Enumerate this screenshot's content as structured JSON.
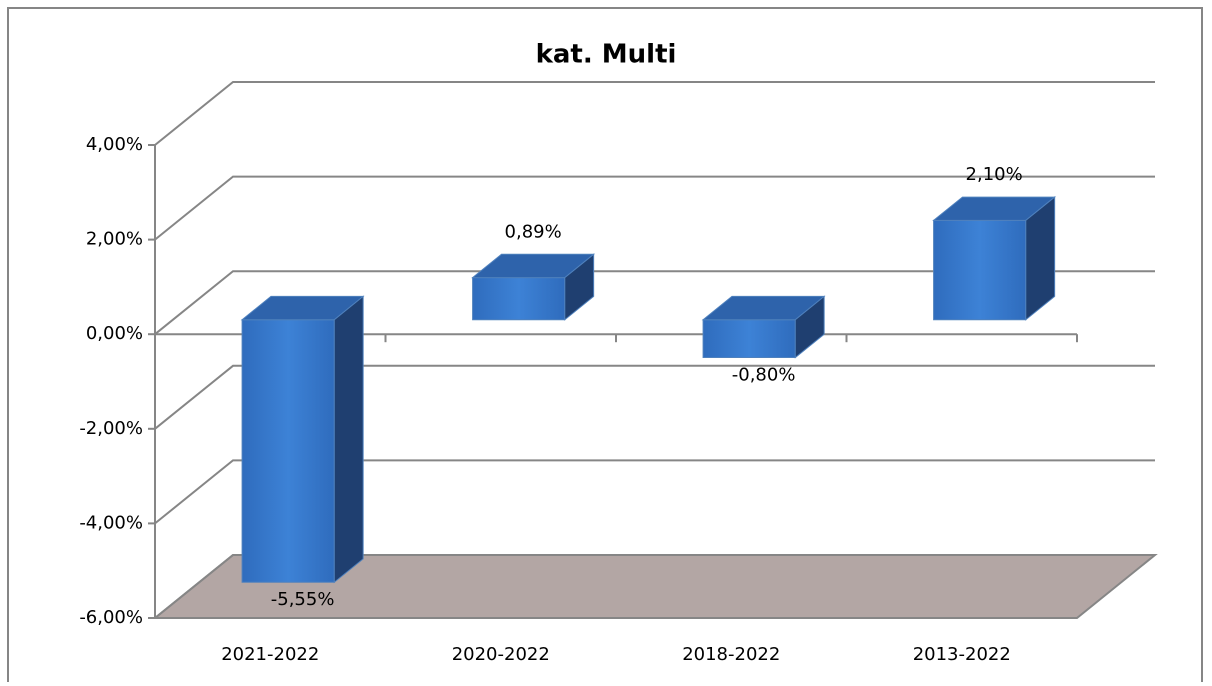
{
  "chart_data": {
    "type": "bar3d",
    "title": "kat. Multi",
    "categories": [
      "2021-2022",
      "2020-2022",
      "2018-2022",
      "2013-2022"
    ],
    "values": [
      -5.55,
      0.89,
      -0.8,
      2.1
    ],
    "value_labels": [
      "-5,55%",
      "0,89%",
      "-0,80%",
      "2,10%"
    ],
    "color": "#3a7dd0",
    "ylim": [
      -6,
      4
    ],
    "yticks": [
      {
        "value": -6,
        "label": "-6,00%"
      },
      {
        "value": -4,
        "label": "-4,00%"
      },
      {
        "value": -2,
        "label": "-2,00%"
      },
      {
        "value": 0,
        "label": "0,00%"
      },
      {
        "value": 2,
        "label": "2,00%"
      },
      {
        "value": 4,
        "label": "4,00%"
      }
    ],
    "grid": true
  }
}
